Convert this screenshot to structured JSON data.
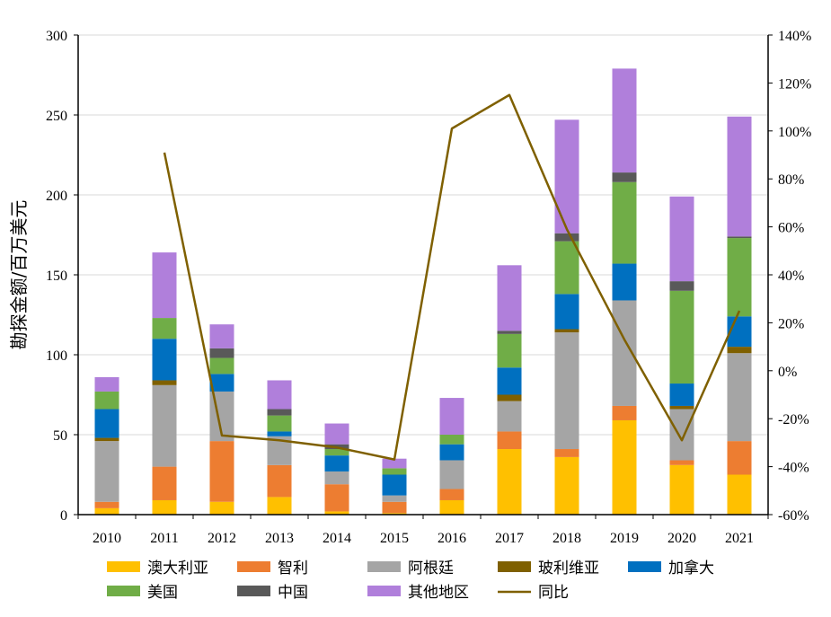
{
  "chart_data": {
    "type": "bar",
    "stacked": true,
    "ylabel": "勘探金额/百万美元",
    "ylim": [
      0,
      300
    ],
    "y_ticks": [
      0,
      50,
      100,
      150,
      200,
      250,
      300
    ],
    "y2lim": [
      -60,
      140
    ],
    "y2_ticks": [
      "-60%",
      "-40%",
      "-20%",
      "0%",
      "20%",
      "40%",
      "60%",
      "80%",
      "100%",
      "120%",
      "140%"
    ],
    "grid": true,
    "legend_position": "bottom",
    "categories": [
      "2010",
      "2011",
      "2012",
      "2013",
      "2014",
      "2015",
      "2016",
      "2017",
      "2018",
      "2019",
      "2020",
      "2021"
    ],
    "series": [
      {
        "name": "澳大利亚",
        "color": "#FFC000",
        "values": [
          4,
          9,
          8,
          11,
          2,
          1,
          9,
          41,
          36,
          59,
          31,
          25
        ]
      },
      {
        "name": "智利",
        "color": "#ED7D31",
        "values": [
          4,
          21,
          38,
          20,
          17,
          7,
          7,
          11,
          5,
          9,
          3,
          21
        ]
      },
      {
        "name": "阿根廷",
        "color": "#A5A5A5",
        "values": [
          38,
          51,
          31,
          18,
          8,
          4,
          18,
          19,
          73,
          66,
          32,
          55
        ]
      },
      {
        "name": "玻利维亚",
        "color": "#7F6000",
        "values": [
          2,
          3,
          0,
          0,
          0,
          0,
          0,
          4,
          2,
          0,
          2,
          4
        ]
      },
      {
        "name": "加拿大",
        "color": "#0070C0",
        "values": [
          18,
          26,
          11,
          3,
          10,
          13,
          10,
          17,
          22,
          23,
          14,
          19
        ]
      },
      {
        "name": "美国",
        "color": "#70AD47",
        "values": [
          11,
          13,
          10,
          10,
          4,
          4,
          6,
          21,
          33,
          51,
          58,
          49
        ]
      },
      {
        "name": "中国",
        "color": "#595959",
        "values": [
          0,
          0,
          6,
          4,
          3,
          0,
          0,
          2,
          5,
          6,
          6,
          1
        ]
      },
      {
        "name": "其他地区",
        "color": "#B07FDB",
        "values": [
          9,
          41,
          15,
          18,
          13,
          6,
          23,
          41,
          71,
          65,
          53,
          75
        ]
      }
    ],
    "line_series": {
      "name": "同比",
      "color": "#7F6000",
      "axis": "right",
      "values": [
        null,
        91,
        -27,
        -29,
        -32,
        -37,
        101,
        115,
        59,
        13,
        -29,
        25
      ]
    }
  }
}
